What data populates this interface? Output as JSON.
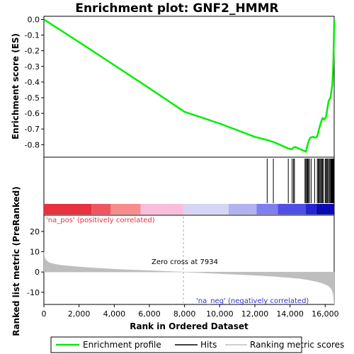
{
  "chart_data": {
    "type": "line",
    "title": "Enrichment plot: GNF2_HMMR",
    "es_panel": {
      "ylabel": "Enrichment score (ES)",
      "ylim": [
        -0.88,
        0.02
      ],
      "yticks": [
        0.0,
        -0.1,
        -0.2,
        -0.3,
        -0.4,
        -0.5,
        -0.6,
        -0.7,
        -0.8
      ],
      "ytick_labels": [
        "0.0",
        "-0.1",
        "-0.2",
        "-0.3",
        "-0.4",
        "-0.5",
        "-0.6",
        "-0.7",
        "-0.8"
      ],
      "series": [
        {
          "name": "Enrichment profile",
          "color": "#00ee00",
          "x": [
            0,
            2000,
            4000,
            6000,
            8000,
            10000,
            12000,
            12700,
            13100,
            13500,
            13900,
            14100,
            14200,
            14300,
            14500,
            14700,
            14900,
            14950,
            15050,
            15150,
            15300,
            15450,
            15550,
            15650,
            15700,
            15780,
            15850,
            15950,
            16050,
            16150,
            16200,
            16300,
            16350,
            16400,
            16430,
            16460,
            16480,
            16500,
            16510
          ],
          "y": [
            0.0,
            -0.145,
            -0.292,
            -0.44,
            -0.59,
            -0.665,
            -0.75,
            -0.77,
            -0.785,
            -0.805,
            -0.825,
            -0.83,
            -0.818,
            -0.815,
            -0.825,
            -0.835,
            -0.845,
            -0.82,
            -0.78,
            -0.755,
            -0.75,
            -0.755,
            -0.745,
            -0.7,
            -0.68,
            -0.65,
            -0.63,
            -0.64,
            -0.62,
            -0.55,
            -0.52,
            -0.5,
            -0.46,
            -0.42,
            -0.36,
            -0.28,
            -0.18,
            -0.08,
            0.0
          ]
        }
      ]
    },
    "hits_panel": {
      "label": "Hits",
      "hit_positions": [
        12700,
        13050,
        13900,
        14120,
        14200,
        14250,
        14850,
        14900,
        14950,
        15000,
        15050,
        15100,
        15200,
        15400,
        15550,
        15600,
        15650,
        15700,
        15750,
        15800,
        15850,
        15900,
        16000,
        16050,
        16100,
        16150,
        16180,
        16250,
        16300,
        16330,
        16360,
        16390,
        16420,
        16440,
        16460,
        16480,
        16500,
        16510
      ],
      "colorbar": [
        "#e8303e",
        "#f05662",
        "#f88c8c",
        "#fbbddc",
        "#d6d6f4",
        "#b2b2ee",
        "#7f7ff0",
        "#5050e6",
        "#2424d2",
        "#0a0ab4"
      ],
      "colorbar_breaks": [
        0,
        2700,
        3800,
        5500,
        7934,
        10500,
        12100,
        13300,
        14900,
        15500,
        16510
      ]
    },
    "metric_panel": {
      "ylabel": "Ranked list metric (PreRanked)",
      "ylim": [
        -16,
        28
      ],
      "yticks": [
        20,
        10,
        0,
        -10
      ],
      "ytick_labels": [
        "20",
        "10",
        "0",
        "-10"
      ],
      "series": [
        {
          "name": "Ranking metric scores",
          "color": "#bebebe",
          "x": [
            0,
            50,
            150,
            300,
            600,
            1000,
            2000,
            3000,
            4000,
            5000,
            6000,
            7000,
            7934,
            9000,
            10000,
            11000,
            12000,
            13000,
            14000,
            14500,
            15000,
            15500,
            15800,
            16000,
            16200,
            16350,
            16450,
            16510
          ],
          "y": [
            10.0,
            7.0,
            5.5,
            4.6,
            3.9,
            3.3,
            2.5,
            1.9,
            1.4,
            1.0,
            0.7,
            0.35,
            0.0,
            -0.4,
            -0.8,
            -1.2,
            -1.6,
            -2.1,
            -2.8,
            -3.2,
            -3.8,
            -4.7,
            -5.4,
            -6.1,
            -7.0,
            -8.2,
            -10.5,
            -16.0
          ]
        }
      ],
      "pos_label": "'na_pos' (positively correlated)",
      "neg_label": "'na_neg' (negatively correlated)",
      "zero_cross_label": "Zero cross at 7934",
      "zero_cross": 7934
    },
    "xlabel": "Rank in Ordered Dataset",
    "xlim": [
      0,
      16510
    ],
    "xticks": [
      0,
      2000,
      4000,
      6000,
      8000,
      10000,
      12000,
      14000,
      16000
    ],
    "xtick_labels": [
      "0",
      "2,000",
      "4,000",
      "6,000",
      "8,000",
      "10,000",
      "12,000",
      "14,000",
      "16,000"
    ],
    "legend": {
      "placement": "bottom",
      "entries": [
        "Enrichment profile",
        "Hits",
        "Ranking metric scores"
      ]
    },
    "colors": {
      "profile": "#00ee00",
      "hits": "#000000",
      "metric": "#bebebe",
      "pos_text": "#e8303e",
      "neg_text": "#3232c8"
    }
  }
}
